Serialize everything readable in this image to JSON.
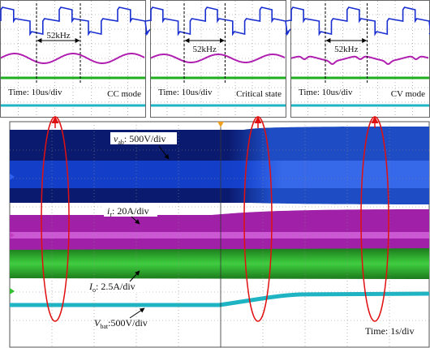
{
  "insets": [
    {
      "frequency": "52kHz",
      "time_scale": "Time: 10us/div",
      "mode": "CC mode"
    },
    {
      "frequency": "52kHz",
      "time_scale": "Time: 10us/div",
      "mode": "Critical state"
    },
    {
      "frequency": "52kHz",
      "time_scale": "Time: 10us/div",
      "mode": "CV mode"
    }
  ],
  "main": {
    "traces": [
      {
        "symbol": "v",
        "subscript": "ab",
        "scale": ": 500V/div"
      },
      {
        "symbol": "i",
        "subscript": "r",
        "scale": ": 20A/div"
      },
      {
        "symbol": "I",
        "subscript": "o",
        "scale": ": 2.5A/div"
      },
      {
        "symbol": "V",
        "subscript": "bat",
        "scale": ":500V/div"
      }
    ],
    "time_scale": "Time: 1s/div"
  }
}
